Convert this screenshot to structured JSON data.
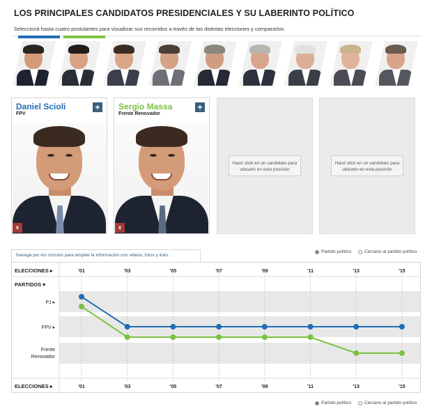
{
  "page": {
    "title": "LOS PRINCIPALES CANDIDATOS PRESIDENCIALES Y SU LABERINTO POLÍTICO",
    "subtitle": "Seleccioná hasta cuatro postulantes para visualizar sus recorridos a través de las distintas elecciones y compararlos."
  },
  "colors": {
    "blue": "#1f6db5",
    "green": "#7dc142",
    "navy": "#3a5f7c",
    "band": "#e8e8e8"
  },
  "strip": {
    "thumbnails": [
      {
        "name": "candidate-1",
        "selected": "blue",
        "suit": "#1d2330",
        "hair": "#2a2622",
        "skin": "#d49b78"
      },
      {
        "name": "candidate-2",
        "selected": "green",
        "suit": "#2a2e36",
        "hair": "#241c18",
        "skin": "#d9a282"
      },
      {
        "name": "candidate-3",
        "selected": null,
        "suit": "#3a3f4a",
        "hair": "#3b2c22",
        "skin": "#dba587"
      },
      {
        "name": "candidate-4",
        "selected": null,
        "suit": "#6e7077",
        "hair": "#4b4038",
        "skin": "#d4a285"
      },
      {
        "name": "candidate-5",
        "selected": null,
        "suit": "#252a34",
        "hair": "#8a8680",
        "skin": "#cf9d82"
      },
      {
        "name": "candidate-6",
        "selected": null,
        "suit": "#2d313b",
        "hair": "#b8b4ae",
        "skin": "#d8a48a"
      },
      {
        "name": "candidate-7",
        "selected": null,
        "suit": "#3b3f48",
        "hair": "#e3e1dd",
        "skin": "#dcae96"
      },
      {
        "name": "candidate-8",
        "selected": null,
        "suit": "#4a4b54",
        "hair": "#c9b48c",
        "skin": "#e1b39b"
      },
      {
        "name": "candidate-9",
        "selected": null,
        "suit": "#55575f",
        "hair": "#6a5b4e",
        "skin": "#d8a489"
      }
    ]
  },
  "cards": [
    {
      "name": "Daniel Scioli",
      "party": "FPV",
      "color": "#1f6db5",
      "plus": "+",
      "remove": "x",
      "tie": "#7a8aa8"
    },
    {
      "name": "Sergio Massa",
      "party": "Frente Renovador",
      "color": "#7dc142",
      "plus": "+",
      "remove": "x",
      "tie": "#5a6a80"
    },
    {
      "empty_message": "Hacé click en un candidato para ubicarlo en esta posición"
    },
    {
      "empty_message": "Hacé click en un candidato para ubicarlo en esta posición"
    }
  ],
  "navigation_hint": "Navegá por los círculos para ampliar la información con videos, fotos y links",
  "legend": {
    "filled": "Partido político",
    "open": "Cercano al partido político"
  },
  "chart_data": {
    "type": "line",
    "x_label_top": "ELECCIONES",
    "x_label_bottom": "ELECCIONES",
    "y_header": "PARTIDOS",
    "x": [
      "'01",
      "'03",
      "'05",
      "'07",
      "'09",
      "'11",
      "'13",
      "'15"
    ],
    "categories": [
      "PJ",
      "FPV",
      "Frente Renovador"
    ],
    "series": [
      {
        "name": "Daniel Scioli",
        "color": "#1f6db5",
        "values": [
          "PJ",
          "FPV",
          "FPV",
          "FPV",
          "FPV",
          "FPV",
          "FPV",
          "FPV"
        ]
      },
      {
        "name": "Sergio Massa",
        "color": "#7dc142",
        "values": [
          "PJ",
          "FPV",
          "FPV",
          "FPV",
          "FPV",
          "FPV",
          "Frente Renovador",
          "Frente Renovador"
        ]
      }
    ]
  }
}
